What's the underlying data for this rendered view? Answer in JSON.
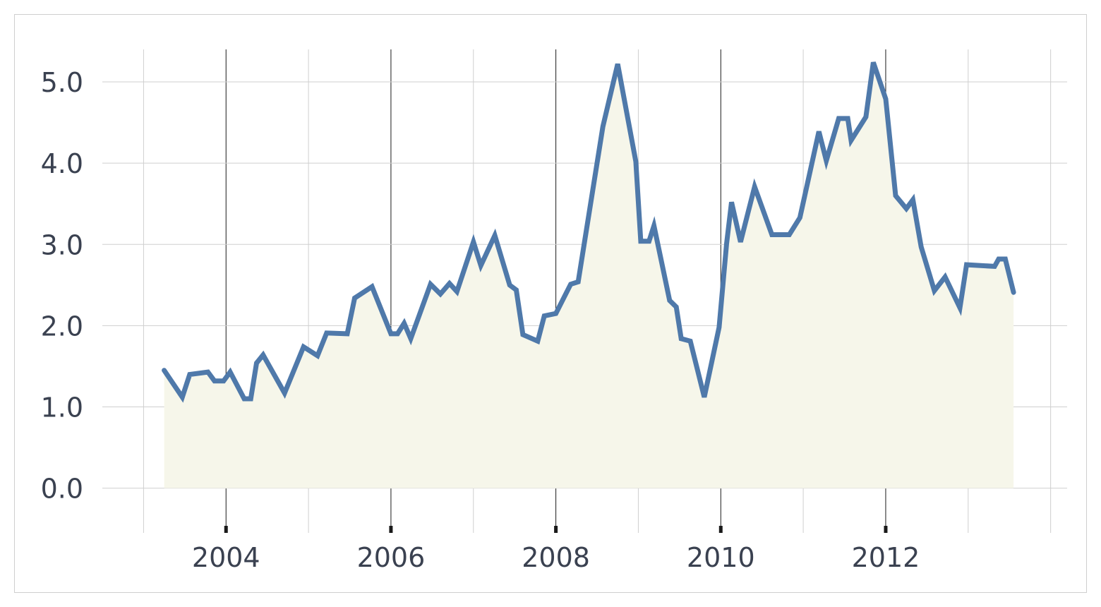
{
  "chart_data": {
    "type": "area",
    "title": "",
    "xlabel": "",
    "ylabel": "",
    "xlim": [
      2002.5,
      2014.2
    ],
    "ylim": [
      -0.55,
      5.4
    ],
    "grid": true,
    "x_ticks": [
      {
        "value": 2004,
        "label": "2004"
      },
      {
        "value": 2006,
        "label": "2006"
      },
      {
        "value": 2008,
        "label": "2008"
      },
      {
        "value": 2010,
        "label": "2010"
      },
      {
        "value": 2012,
        "label": "2012"
      }
    ],
    "x_minor_gridlines": [
      2003,
      2004,
      2005,
      2006,
      2007,
      2008,
      2009,
      2010,
      2011,
      2012,
      2013,
      2014
    ],
    "y_ticks": [
      {
        "value": 0,
        "label": "0.0"
      },
      {
        "value": 1,
        "label": "1.0"
      },
      {
        "value": 2,
        "label": "2.0"
      },
      {
        "value": 3,
        "label": "3.0"
      },
      {
        "value": 4,
        "label": "4.0"
      },
      {
        "value": 5,
        "label": "5.0"
      }
    ],
    "colors": {
      "line": "#4f79aa",
      "area_fill": "#f6f6ea"
    },
    "series": [
      {
        "x": [
          2003.25,
          2003.47,
          2003.56,
          2003.78,
          2003.86,
          2003.97,
          2004.05,
          2004.22,
          2004.3,
          2004.37,
          2004.45,
          2004.71,
          2004.94,
          2005.11,
          2005.22,
          2005.47,
          2005.56,
          2005.77,
          2006.0,
          2006.08,
          2006.16,
          2006.24,
          2006.48,
          2006.6,
          2006.71,
          2006.8,
          2007.0,
          2007.09,
          2007.26,
          2007.44,
          2007.52,
          2007.6,
          2007.78,
          2007.86,
          2008.0,
          2008.18,
          2008.27,
          2008.57,
          2008.75,
          2008.97,
          2009.03,
          2009.13,
          2009.19,
          2009.38,
          2009.46,
          2009.52,
          2009.63,
          2009.8,
          2009.98,
          2010.07,
          2010.13,
          2010.24,
          2010.41,
          2010.62,
          2010.83,
          2010.96,
          2011.19,
          2011.28,
          2011.43,
          2011.54,
          2011.58,
          2011.76,
          2011.85,
          2012.0,
          2012.12,
          2012.25,
          2012.33,
          2012.43,
          2012.59,
          2012.72,
          2012.9,
          2012.98,
          2013.32,
          2013.37,
          2013.45,
          2013.55
        ],
        "values": [
          1.45,
          1.12,
          1.4,
          1.43,
          1.32,
          1.32,
          1.43,
          1.1,
          1.1,
          1.54,
          1.64,
          1.17,
          1.74,
          1.63,
          1.91,
          1.9,
          2.34,
          2.48,
          1.9,
          1.9,
          2.03,
          1.84,
          2.51,
          2.39,
          2.52,
          2.42,
          3.03,
          2.74,
          3.11,
          2.5,
          2.44,
          1.89,
          1.81,
          2.12,
          2.15,
          2.51,
          2.54,
          4.45,
          5.22,
          4.02,
          3.04,
          3.04,
          3.23,
          2.31,
          2.23,
          1.84,
          1.81,
          1.12,
          1.98,
          3.01,
          3.52,
          3.03,
          3.71,
          3.12,
          3.12,
          3.33,
          4.39,
          4.03,
          4.55,
          4.55,
          4.28,
          4.57,
          5.24,
          4.79,
          3.6,
          3.44,
          3.55,
          2.97,
          2.43,
          2.6,
          2.22,
          2.75,
          2.73,
          2.82,
          2.82,
          2.41
        ]
      }
    ]
  }
}
